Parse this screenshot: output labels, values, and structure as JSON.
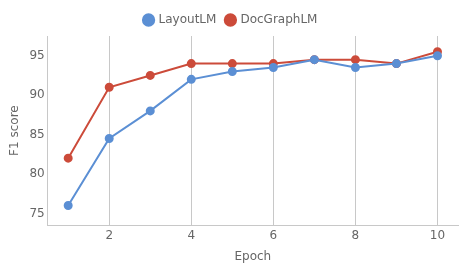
{
  "chart_data": {
    "type": "line",
    "x": [
      1,
      2,
      3,
      4,
      5,
      6,
      7,
      8,
      9,
      10
    ],
    "series": [
      {
        "name": "LayoutLM",
        "color": "#5b8fd4",
        "marker": "circle",
        "line_style": "solid",
        "values": [
          76.0,
          84.5,
          88.0,
          92.0,
          93.0,
          93.5,
          94.5,
          93.5,
          94.0,
          95.0
        ]
      },
      {
        "name": "DocGraphLM",
        "color": "#cc4b3a",
        "marker": "circle",
        "line_style": "solid",
        "values": [
          82.0,
          91.0,
          92.5,
          94.0,
          94.0,
          94.0,
          94.5,
          94.5,
          94.0,
          95.5
        ]
      }
    ],
    "xlabel": "Epoch",
    "ylabel": "F1 score",
    "xlim": [
      0.5,
      10.5
    ],
    "xticks": [
      2,
      4,
      6,
      8,
      10
    ],
    "ylim": [
      73.5,
      97.5
    ],
    "yticks": [
      75,
      80,
      85,
      90,
      95
    ],
    "grid": "x",
    "legend": "upper center"
  }
}
